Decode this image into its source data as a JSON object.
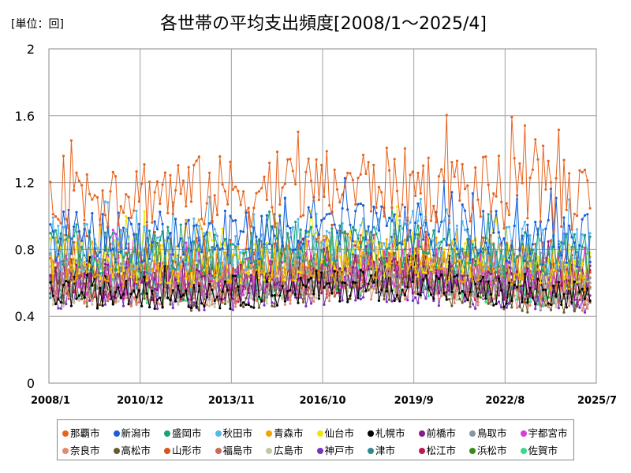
{
  "unit_label": "[単位：回]",
  "chart_data": {
    "type": "line",
    "title": "各世帯の平均支出頻度[2008/1～2025/4]",
    "xlabel": "",
    "ylabel": "",
    "ylim": [
      0,
      2
    ],
    "yticks": [
      "0",
      "0.4",
      "0.8",
      "1.2",
      "1.6",
      "2"
    ],
    "xticks": [
      "2008/1",
      "2010/12",
      "2013/11",
      "2016/10",
      "2019/9",
      "2022/8",
      "2025/7"
    ],
    "grid": true,
    "legend_position": "bottom",
    "series": [
      {
        "name": "那覇市",
        "color": "#e8631e",
        "base": 1.15,
        "amp": 0.22
      },
      {
        "name": "新潟市",
        "color": "#1a5fd8",
        "base": 0.88,
        "amp": 0.16
      },
      {
        "name": "盛岡市",
        "color": "#1aa37a",
        "base": 0.78,
        "amp": 0.14
      },
      {
        "name": "秋田市",
        "color": "#55b8ef",
        "base": 0.82,
        "amp": 0.15
      },
      {
        "name": "青森市",
        "color": "#f0a400",
        "base": 0.72,
        "amp": 0.14
      },
      {
        "name": "仙台市",
        "color": "#f2e600",
        "base": 0.74,
        "amp": 0.14
      },
      {
        "name": "札幌市",
        "color": "#000000",
        "base": 0.55,
        "amp": 0.1
      },
      {
        "name": "前橋市",
        "color": "#8a1a8a",
        "base": 0.62,
        "amp": 0.12
      },
      {
        "name": "鳥取市",
        "color": "#8a95a3",
        "base": 0.63,
        "amp": 0.12
      },
      {
        "name": "宇都宮市",
        "color": "#d63fd6",
        "base": 0.66,
        "amp": 0.13
      },
      {
        "name": "奈良市",
        "color": "#e08a70",
        "base": 0.58,
        "amp": 0.12
      },
      {
        "name": "高松市",
        "color": "#6b5a2a",
        "base": 0.56,
        "amp": 0.12
      },
      {
        "name": "山形市",
        "color": "#d4561e",
        "base": 0.74,
        "amp": 0.15
      },
      {
        "name": "福島市",
        "color": "#c96a55",
        "base": 0.6,
        "amp": 0.12
      },
      {
        "name": "広島市",
        "color": "#c6c6a3",
        "base": 0.57,
        "amp": 0.11
      },
      {
        "name": "神戸市",
        "color": "#7a2fc2",
        "base": 0.55,
        "amp": 0.11
      },
      {
        "name": "津市",
        "color": "#2f8a90",
        "base": 0.62,
        "amp": 0.12
      },
      {
        "name": "松江市",
        "color": "#c01848",
        "base": 0.61,
        "amp": 0.12
      },
      {
        "name": "浜松市",
        "color": "#3a8a1a",
        "base": 0.63,
        "amp": 0.12
      },
      {
        "name": "佐賀市",
        "color": "#3ad98a",
        "base": 0.6,
        "amp": 0.12
      }
    ]
  }
}
